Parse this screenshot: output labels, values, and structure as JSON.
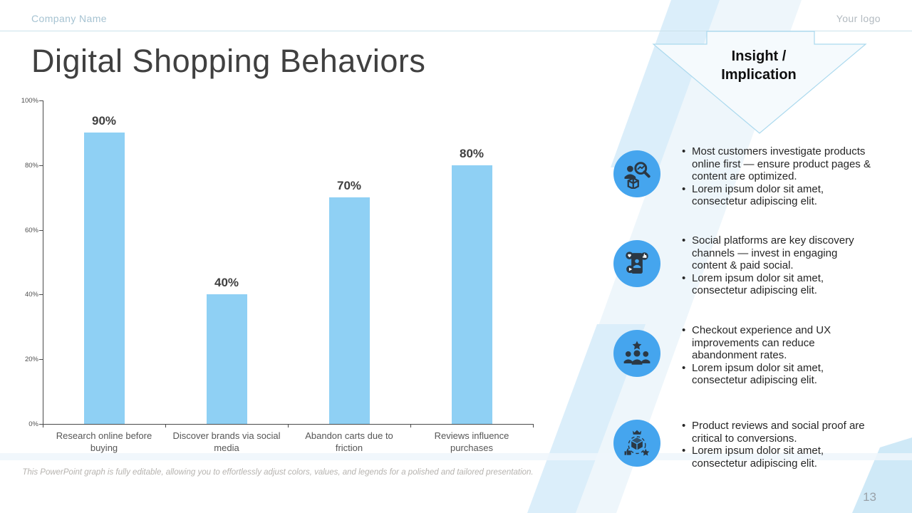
{
  "header": {
    "company": "Company Name",
    "logo": "Your logo"
  },
  "title": "Digital Shopping Behaviors",
  "chart_data": {
    "type": "bar",
    "categories": [
      "Research online before buying",
      "Discover brands via social media",
      "Abandon carts due to friction",
      "Reviews influence purchases"
    ],
    "values": [
      90,
      40,
      70,
      80
    ],
    "value_labels": [
      "90%",
      "40%",
      "70%",
      "80%"
    ],
    "yticks": [
      "0%",
      "20%",
      "40%",
      "60%",
      "80%",
      "100%"
    ],
    "ylim": [
      0,
      100
    ],
    "grid": "off",
    "legend": "none",
    "bar_color": "#8FD0F4",
    "title": "",
    "xlabel": "",
    "ylabel": ""
  },
  "caption": "This PowerPoint graph is fully editable, allowing you to effortlessly adjust colors, values, and legends for a polished and tailored presentation.",
  "insight": {
    "title_line1": "Insight /",
    "title_line2": "Implication",
    "groups": [
      {
        "icon": "customer-research-icon",
        "bullets": [
          "Most customers investigate products online first — ensure product pages & content are optimized.",
          "Lorem ipsum dolor sit amet, consectetur adipiscing elit."
        ]
      },
      {
        "icon": "social-media-phone-icon",
        "bullets": [
          "Social platforms are key discovery channels — invest in engaging content & paid social.",
          "Lorem ipsum dolor sit amet, consectetur adipiscing elit."
        ]
      },
      {
        "icon": "people-star-icon",
        "bullets": [
          "Checkout experience and UX improvements can reduce abandonment rates.",
          "Lorem ipsum dolor sit amet, consectetur adipiscing elit."
        ]
      },
      {
        "icon": "product-review-icon",
        "bullets": [
          "Product reviews and social proof are critical to conversions.",
          "Lorem ipsum dolor sit amet, consectetur adipiscing elit."
        ]
      }
    ]
  },
  "page_number": "13",
  "colors": {
    "bar": "#8FD0F4",
    "icon_circle": "#45A5EE",
    "icon_glyph": "#2B3844",
    "accent_light": "#dbeefa",
    "header_rule": "#cbe2ec"
  }
}
